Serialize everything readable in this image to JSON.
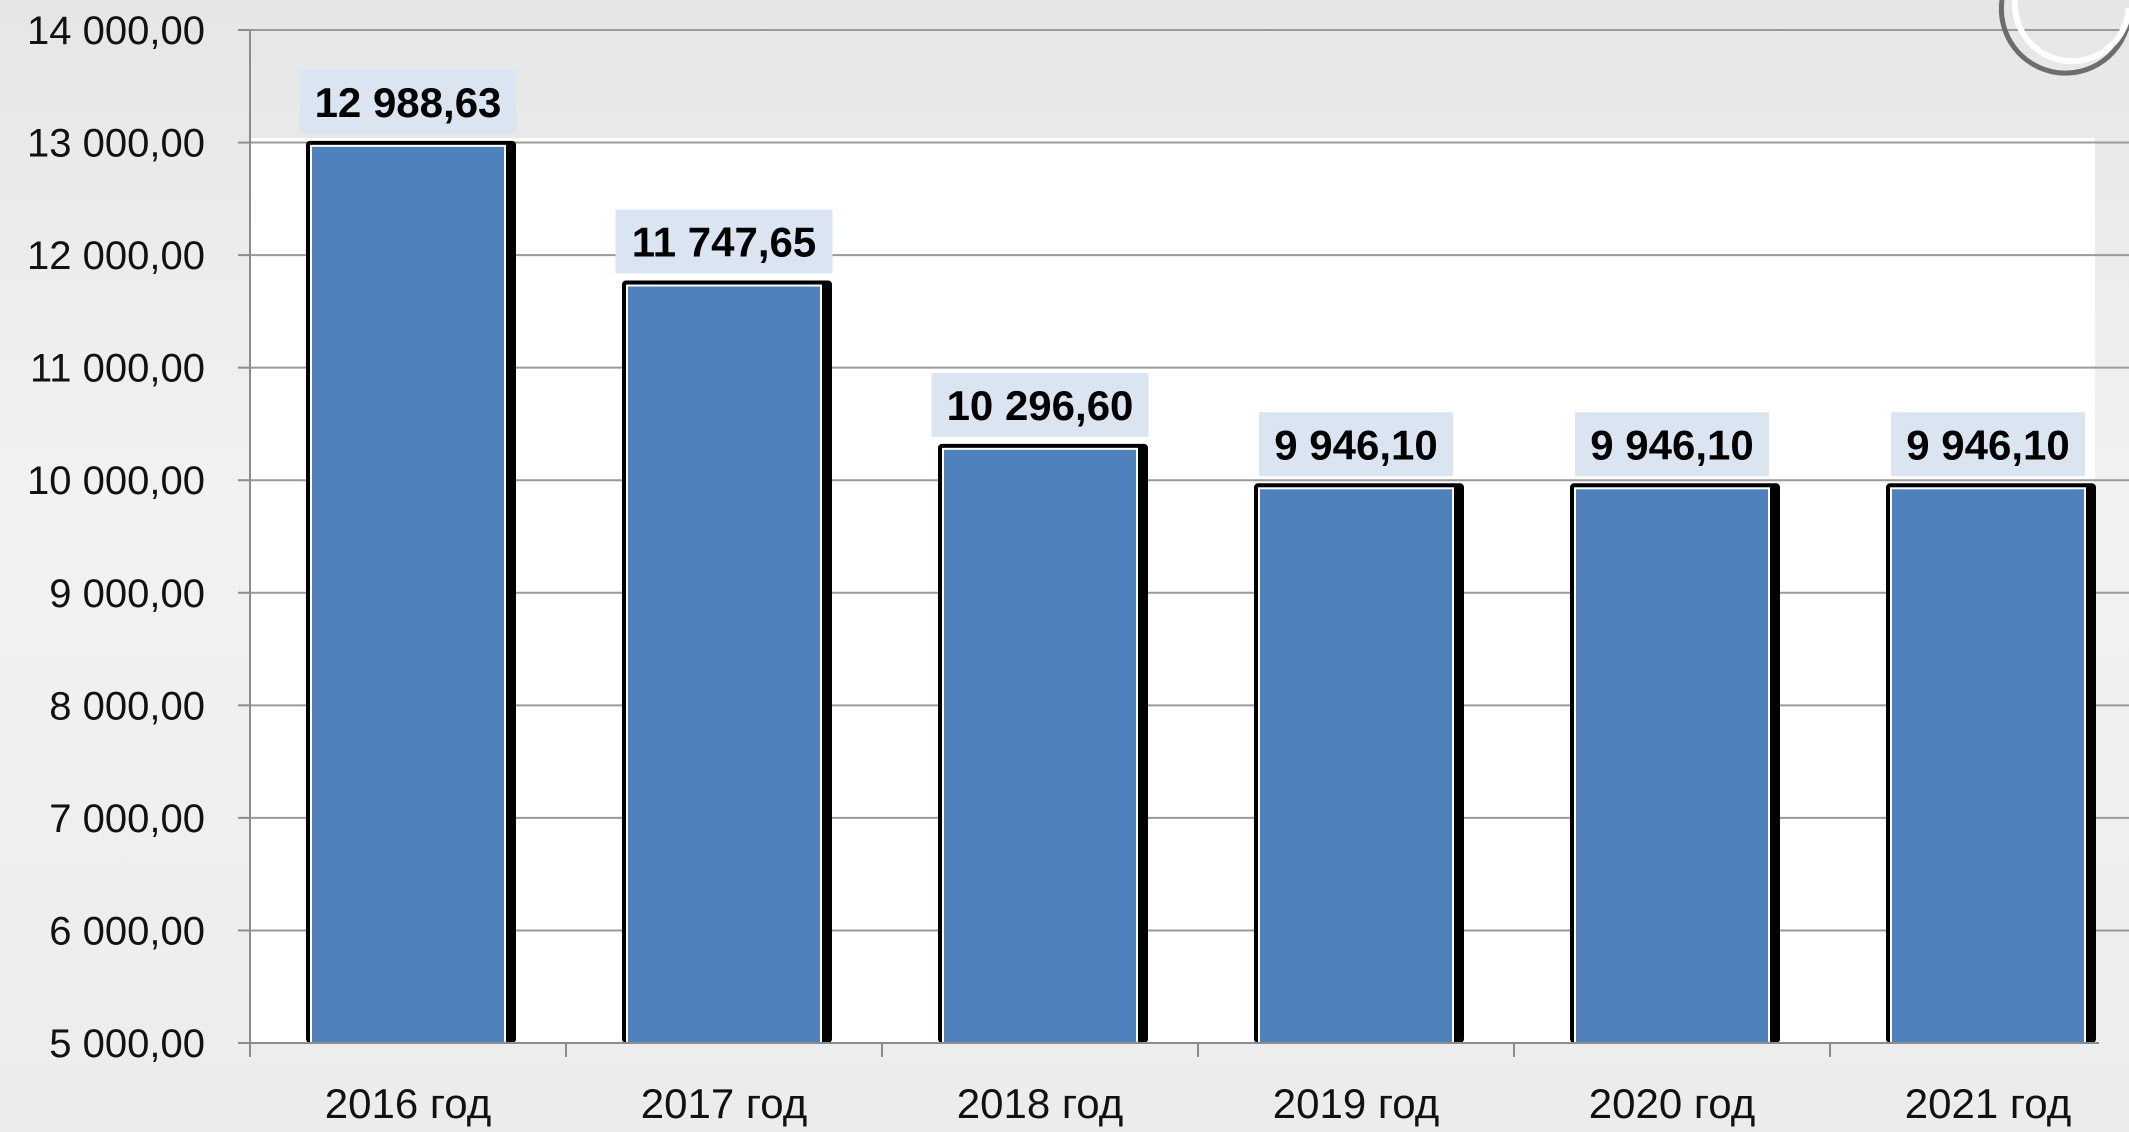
{
  "chart_data": {
    "type": "bar",
    "categories": [
      "2016 год",
      "2017 год",
      "2018 год",
      "2019 год",
      "2020 год",
      "2021 год"
    ],
    "values": [
      12988.63,
      11747.65,
      10296.6,
      9946.1,
      9946.1,
      9946.1
    ],
    "data_labels": [
      "12 988,63",
      "11 747,65",
      "10 296,60",
      "9 946,10",
      "9 946,10",
      "9 946,10"
    ],
    "y_ticks": [
      5000,
      6000,
      7000,
      8000,
      9000,
      10000,
      11000,
      12000,
      13000,
      14000
    ],
    "y_tick_labels": [
      "5 000,00",
      "6 000,00",
      "7 000,00",
      "8 000,00",
      "9 000,00",
      "10 000,00",
      "11 000,00",
      "12 000,00",
      "13 000,00",
      "14 000,00"
    ],
    "ylim": [
      5000,
      14000
    ],
    "grid": true,
    "legend": "none",
    "title": "",
    "xlabel": "",
    "ylabel": ""
  },
  "colors": {
    "bar_fill": "#4f81bd",
    "bar_outline": "#000000",
    "label_background": "#dbe5f1",
    "plot_background": "#ffffff",
    "gridline": "#9a9a9a",
    "axis": "#8c8c8c"
  }
}
